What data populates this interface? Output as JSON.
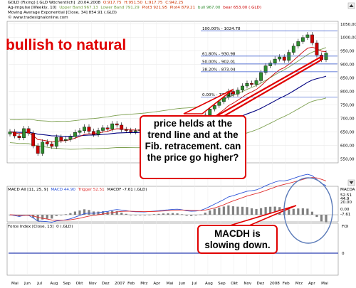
{
  "header": {
    "line1": {
      "instrument": "GOLD (Fixing) [.GLD  Wöchentlich]",
      "date": "20.04.2008",
      "open": "O:917.75",
      "high": "H:951.50",
      "low": "L:917.75",
      "close": "C:942.25"
    },
    "line2": {
      "name": "Ag-impulse [Weekly, 10]",
      "upper": "Upper Band 967.13",
      "lower": "Lower Band 791.29",
      "plot3": "Plot3 921.95",
      "plot4": "Plot4 879.21",
      "bull": "bull 967.00",
      "bear": "bear 653.00 (.GLD)"
    },
    "line3": "Moving Average Exponential [Close, 34] 854.91 (.GLD)",
    "line4": "© www.tradesignalonline.com"
  },
  "annotations": {
    "bullish": "bullish to natural",
    "callout1": "price helds at the trend line and at the Fib. retracement. can the price go higher?",
    "callout2": "MACDH is slowing down."
  },
  "fib_labels": [
    "100.00% - 1024.78",
    "61.80% - 930.98",
    "50.00% - 902.01",
    "38.20% - 873.04",
    "0.00% - 779.25"
  ],
  "macd_panel": {
    "title": "MACD All [11, 25, 9]",
    "macd": "MACD 44.90",
    "trigger": "Trigger 52.51",
    "macdh": "MACDF -7.61 (.GLD)",
    "axis_title": "MACDA",
    "labels": [
      "52.51",
      "44.9",
      "20.00",
      "0.00",
      "-7.61"
    ]
  },
  "force_panel": {
    "title": "Force Index [Close, 13]",
    "value": "0 (.GLD)",
    "axis_title": "FOI"
  },
  "colors": {
    "up_candle": "#2e8b2e",
    "down_candle": "#cc0000",
    "upper_band": "#7da050",
    "lower_band": "#7da050",
    "ema": "#000080",
    "trendline": "#e00000",
    "macd_line": "#2a52d8",
    "trigger_line": "#e03030",
    "histogram": "#808080",
    "fib_line": "#3355cc",
    "ellipse": "#5a7ab8"
  },
  "chart_data": {
    "type": "candlestick",
    "x": [
      "Mai",
      "Jun",
      "Jul",
      "Aug",
      "Sep",
      "Okt",
      "Nov",
      "Dez",
      "2007",
      "Feb",
      "Mrz",
      "Apr",
      "Mai",
      "Jun",
      "Jul",
      "Aug",
      "Sep",
      "Okt",
      "Nov",
      "Dez",
      "2008",
      "Feb",
      "Mrz",
      "Apr",
      "Mai"
    ],
    "y_ticks": [
      550,
      600,
      650,
      700,
      750,
      800,
      850,
      900,
      950,
      1000,
      1050
    ],
    "ylim": [
      535,
      1060
    ],
    "close_series": [
      650,
      635,
      628,
      662,
      645,
      598,
      570,
      612,
      605,
      596,
      630,
      618,
      622,
      632,
      648,
      654,
      668,
      652,
      640,
      655,
      665,
      660,
      680,
      675,
      658,
      655,
      650,
      654,
      658,
      660,
      668,
      671,
      674,
      679,
      680,
      686,
      682,
      673,
      660,
      668,
      678,
      690,
      712,
      735,
      748,
      762,
      778,
      800,
      790,
      805,
      820,
      830,
      826,
      840,
      870,
      895,
      905,
      920,
      928,
      915,
      945,
      968,
      985,
      1000,
      1010,
      980,
      935,
      918,
      942
    ],
    "ema34_end": 854.91,
    "upper_band_end": 967.13,
    "lower_band_end": 791.29,
    "fib_levels": [
      1024.78,
      930.98,
      902.01,
      873.04,
      779.25
    ],
    "macd": {
      "macd": 44.9,
      "trigger": 52.51,
      "histogram": -7.61,
      "ylim": [
        -20,
        80
      ]
    },
    "force_index": 0
  }
}
